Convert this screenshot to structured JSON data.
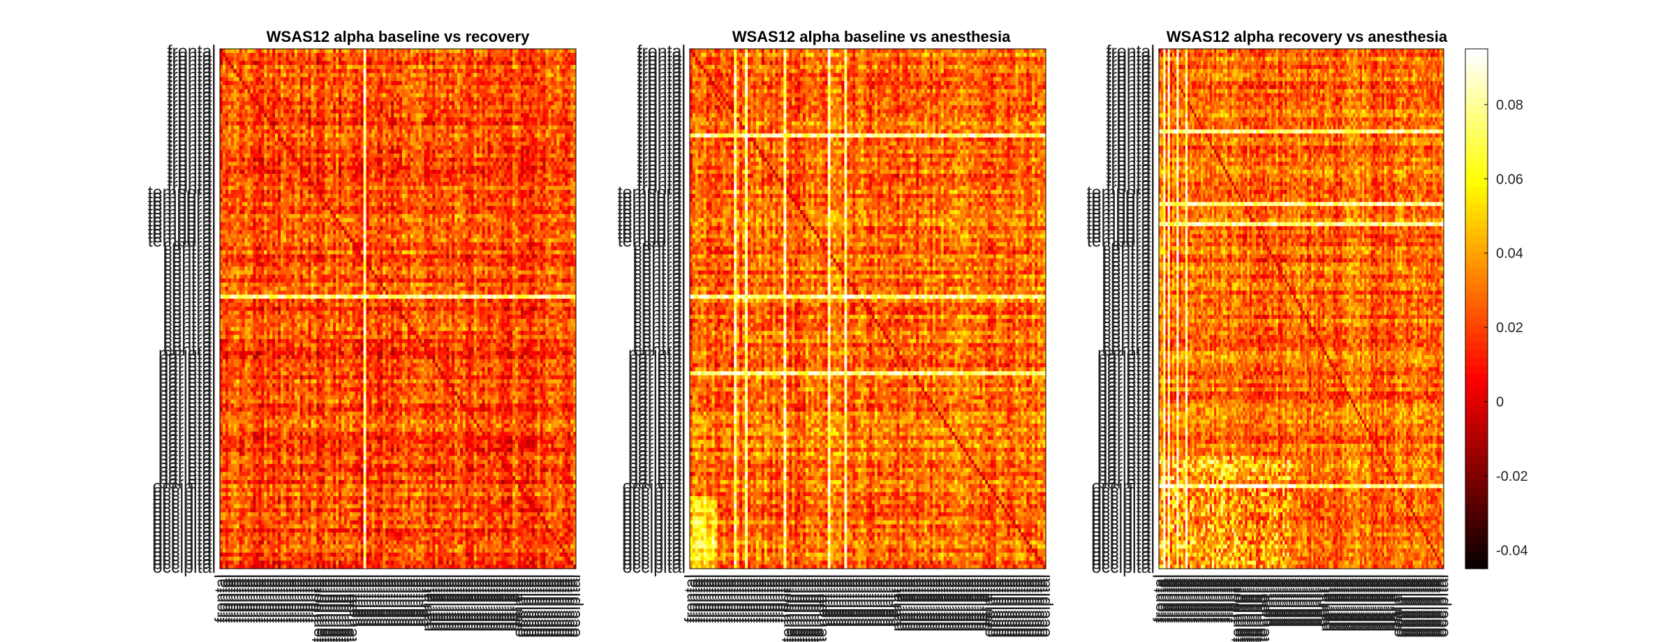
{
  "figure": {
    "panels": [
      {
        "title": "WSAS12 alpha baseline vs recovery"
      },
      {
        "title": "WSAS12 alpha baseline vs anesthesia"
      },
      {
        "title": "WSAS12 alpha recovery vs anesthesia"
      }
    ],
    "colorbar": {
      "colormap": "hot",
      "range": [
        -0.045,
        0.095
      ],
      "ticks": [
        "0.08",
        "0.06",
        "0.04",
        "0.02",
        "0",
        "-0.02",
        "-0.04"
      ]
    }
  },
  "chart_data": [
    {
      "type": "heatmap",
      "title": "WSAS12 alpha baseline vs recovery",
      "matrix_size": 129,
      "row_groups": [
        {
          "label": "frontal",
          "count": 35
        },
        {
          "label": "temporal",
          "count": 13
        },
        {
          "label": "central",
          "count": 27
        },
        {
          "label": "parietal",
          "count": 33
        },
        {
          "label": "occipital",
          "count": 21
        }
      ],
      "column_groups": [
        "frontal",
        "temporal",
        "central",
        "parietal",
        "occipital"
      ],
      "value_range": [
        -0.045,
        0.095
      ],
      "colormap": "hot",
      "notes_visible": "dense random-looking matrix of values mostly 0.0-0.05 with bright near-white cross at one temporal channel"
    },
    {
      "type": "heatmap",
      "title": "WSAS12 alpha baseline vs anesthesia",
      "matrix_size": 129,
      "row_groups": [
        {
          "label": "frontal",
          "count": 35
        },
        {
          "label": "temporal",
          "count": 13
        },
        {
          "label": "central",
          "count": 27
        },
        {
          "label": "parietal",
          "count": 33
        },
        {
          "label": "occipital",
          "count": 21
        }
      ],
      "column_groups": [
        "frontal",
        "temporal",
        "central",
        "parietal",
        "occipital"
      ],
      "value_range": [
        -0.045,
        0.095
      ],
      "colormap": "hot"
    },
    {
      "type": "heatmap",
      "title": "WSAS12 alpha recovery vs anesthesia",
      "matrix_size": 129,
      "row_groups": [
        {
          "label": "frontal",
          "count": 35
        },
        {
          "label": "temporal",
          "count": 13
        },
        {
          "label": "central",
          "count": 27
        },
        {
          "label": "parietal",
          "count": 33
        },
        {
          "label": "occipital",
          "count": 21
        }
      ],
      "column_groups": [
        "frontal",
        "temporal",
        "central",
        "parietal",
        "occipital"
      ],
      "value_range": [
        -0.045,
        0.095
      ],
      "colormap": "hot"
    }
  ]
}
